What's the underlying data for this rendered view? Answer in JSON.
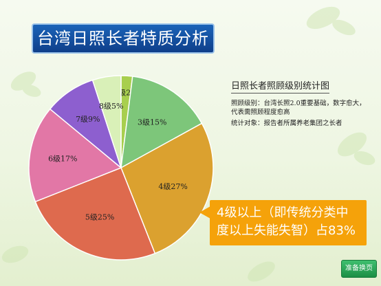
{
  "title": "台湾日照长者特质分析",
  "note": {
    "heading": "日照长者照顾级别统计图",
    "lines": [
      "照顾级别：台湾长照2.0重要基础，数字愈大，代表需照顾程度愈高",
      "统计对象：报告者所属养老集团之长者"
    ]
  },
  "callout": "4级以上（即传统分类中度以上失能失智）占83%",
  "next_button": "准备换页",
  "chart_data": {
    "type": "pie",
    "title": "",
    "start": "12 o'clock, clockwise",
    "slices": [
      {
        "label": "2级2%",
        "value": 2,
        "color": "#a8cf4e"
      },
      {
        "label": "3级15%",
        "value": 15,
        "color": "#7dc67a"
      },
      {
        "label": "4级27%",
        "value": 27,
        "color": "#dba12f"
      },
      {
        "label": "5级25%",
        "value": 25,
        "color": "#de6a4e"
      },
      {
        "label": "6级17%",
        "value": 17,
        "color": "#e277a6"
      },
      {
        "label": "7级9%",
        "value": 9,
        "color": "#8d5fcf"
      },
      {
        "label": "8级5%",
        "value": 5,
        "color": "#d9f0b8"
      }
    ]
  }
}
